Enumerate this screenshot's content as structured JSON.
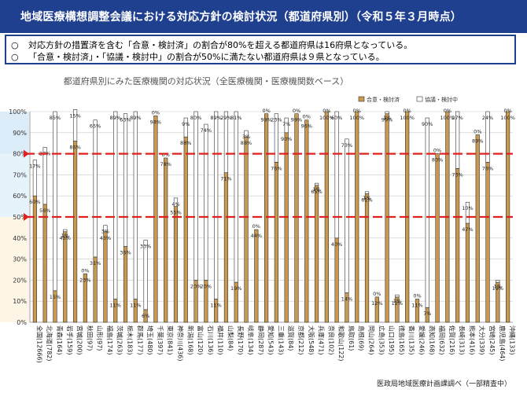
{
  "header": {
    "title": "地域医療構想調整会議における対応方針の検討状況（都道府県別）（令和５年３月時点）"
  },
  "summary": [
    {
      "bullet": "○",
      "text": "対応方針の措置済を含む「合意・検討済」の割合が80%を超える都道府県は16府県となっている。"
    },
    {
      "bullet": "○",
      "text": "「合意・検討済」・「協議・検討中」の割合が50%に満たない都道府県は９県となっている。"
    }
  ],
  "source_note": "医政局地域医療計画課調べ（一部精査中）",
  "colors": {
    "header_bg": "#1f3f8f",
    "band_upper": "#dcecf8",
    "band_middle": "#e7f3fb",
    "band_lower": "#fdf5e6",
    "agreed": "#c9994f",
    "discussing": "#ffffff",
    "bar_outline": "#333333",
    "threshold": "#e02020"
  },
  "chart_data": {
    "type": "bar",
    "stacked": true,
    "title": "都道府県別にみた医療機関の対応状況（全医療機関・医療機関数ベース）",
    "ylim": [
      0,
      100
    ],
    "y_ticks": [
      "0%",
      "10%",
      "20%",
      "30%",
      "40%",
      "50%",
      "60%",
      "70%",
      "80%",
      "90%",
      "100%"
    ],
    "thresholds": [
      80,
      50
    ],
    "legend_position": "top-right",
    "categories": [
      "全国(12666)",
      "北海道(782)",
      "青森(164)",
      "岩手(159)",
      "宮城(200)",
      "秋田(97)",
      "山形(97)",
      "福島(174)",
      "茨城(263)",
      "栃木(183)",
      "群馬(177)",
      "埼玉(480)",
      "千葉(397)",
      "東京(841)",
      "神奈川(436)",
      "新潟(168)",
      "富山(120)",
      "石川(136)",
      "福井(110)",
      "山梨(84)",
      "長野(170)",
      "岐阜(134)",
      "静岡(287)",
      "愛知(543)",
      "三重(143)",
      "滋賀(84)",
      "京都(212)",
      "大阪(548)",
      "兵庫(471)",
      "奈良(102)",
      "和歌山(122)",
      "鳥取(61)",
      "島根(69)",
      "岡山(264)",
      "広島(353)",
      "山口(195)",
      "徳島(165)",
      "香川(135)",
      "愛媛(246)",
      "高知(168)",
      "福岡(632)",
      "佐賀(216)",
      "長崎(313)",
      "熊本(416)",
      "大分(339)",
      "宮崎(245)",
      "鹿児島(464)",
      "沖縄(133)"
    ],
    "series": [
      {
        "name": "合意・検討済",
        "values": [
          60,
          56,
          15,
          43,
          86,
          23,
          31,
          43,
          11,
          36,
          11,
          6,
          98,
          78,
          55,
          88,
          20,
          20,
          11,
          71,
          19,
          88,
          44,
          99,
          76,
          90,
          99,
          96,
          65,
          100,
          40,
          14,
          100,
          61,
          12,
          99,
          12,
          100,
          11,
          7,
          80,
          100,
          73,
          47,
          89,
          76,
          19,
          100
        ]
      },
      {
        "name": "協議・検討中",
        "values": [
          17,
          27,
          85,
          1,
          15,
          0,
          65,
          3,
          89,
          63,
          89,
          33,
          0,
          0,
          4,
          9,
          80,
          74,
          89,
          29,
          81,
          3,
          0,
          0,
          23,
          7,
          0,
          0,
          1,
          0,
          60,
          73,
          0,
          1,
          0,
          1,
          1,
          0,
          0,
          90,
          0,
          0,
          27,
          10,
          0,
          24,
          1,
          0
        ]
      }
    ]
  }
}
